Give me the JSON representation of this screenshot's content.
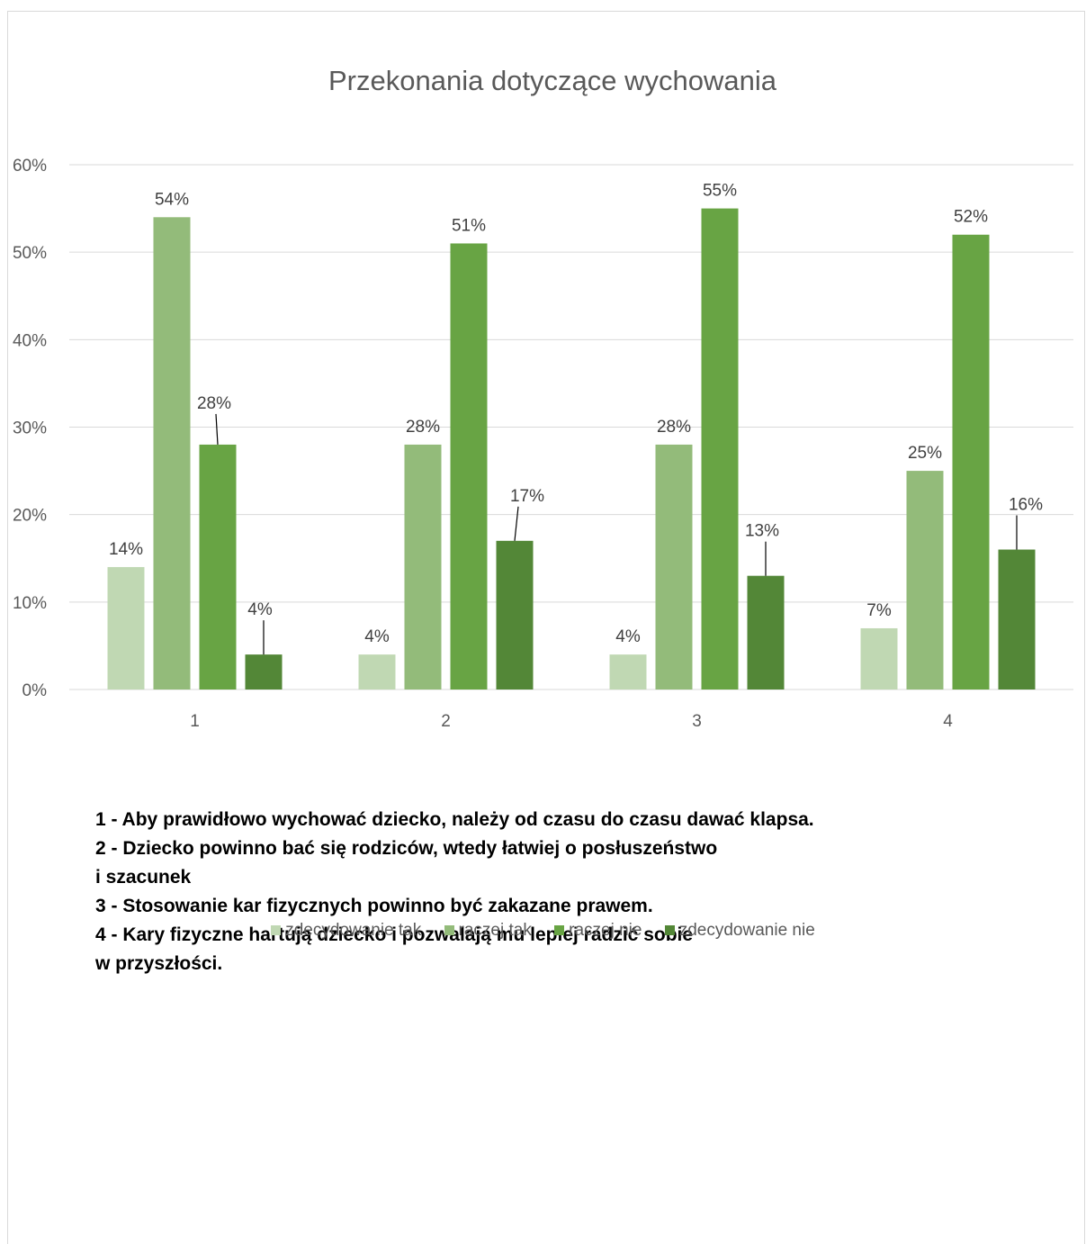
{
  "chart_data": {
    "type": "bar",
    "title": "Przekonania dotyczące wychowania",
    "categories": [
      "1",
      "2",
      "3",
      "4"
    ],
    "series": [
      {
        "name": "zdecydowanie tak",
        "color": "#c0d8b3",
        "values": [
          14,
          4,
          4,
          7
        ]
      },
      {
        "name": "raczej tak",
        "color": "#93bb7a",
        "values": [
          54,
          28,
          28,
          25
        ]
      },
      {
        "name": "raczej nie",
        "color": "#68a444",
        "values": [
          28,
          51,
          55,
          52
        ]
      },
      {
        "name": "zdecydowanie nie",
        "color": "#538737",
        "values": [
          4,
          17,
          13,
          16
        ]
      }
    ],
    "y_ticks": [
      "0%",
      "10%",
      "20%",
      "30%",
      "40%",
      "50%",
      "60%"
    ],
    "ylim": [
      0,
      60
    ],
    "grid": true,
    "legend_position": "bottom",
    "data_label_suffix": "%"
  },
  "notes": [
    "1 - Aby prawidłowo wychować dziecko, należy od czasu do czasu dawać klapsa.",
    "2 - Dziecko powinno bać się rodziców, wtedy łatwiej o posłuszeństwo",
    "i szacunek",
    "3 - Stosowanie kar fizycznych powinno być zakazane prawem.",
    "4 - Kary fizyczne hartują dziecko i pozwalają mu lepiej radzić sobie",
    "w przyszłości."
  ]
}
